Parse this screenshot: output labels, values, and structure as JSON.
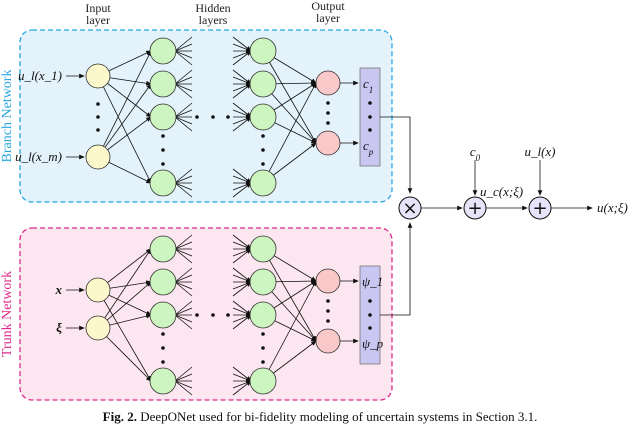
{
  "headers": {
    "input": [
      "Input",
      "layer"
    ],
    "hidden": [
      "Hidden",
      "layers"
    ],
    "output": [
      "Output",
      "layer"
    ]
  },
  "branch": {
    "title": "Branch Network",
    "inputs": [
      "u_l(x_1)",
      "u_l(x_m)"
    ],
    "outputs": [
      "c_1",
      "c_p"
    ]
  },
  "trunk": {
    "title": "Trunk Network",
    "inputs": [
      "x",
      "ξ"
    ],
    "outputs": [
      "ψ_1",
      "ψ_p"
    ]
  },
  "ops": {
    "multiply": "×",
    "bias": "c_0",
    "low_fidelity": "u_l(x)",
    "correction": "u_c(x;ξ)",
    "result": "u(x;ξ)"
  },
  "caption": {
    "bold": "Fig. 2.",
    "text": " DeepONet used for bi-fidelity modeling of uncertain systems in Section 3.1."
  },
  "colors": {
    "branch_border": "#2aa7e0",
    "branch_fill": "#e3f2fb",
    "trunk_border": "#e0288a",
    "trunk_fill": "#fce6f0",
    "input_node": "#fdf7cc",
    "hidden_node": "#cdf5c0",
    "output_node": "#f9c9c9",
    "vector": "#c9c6f2"
  }
}
